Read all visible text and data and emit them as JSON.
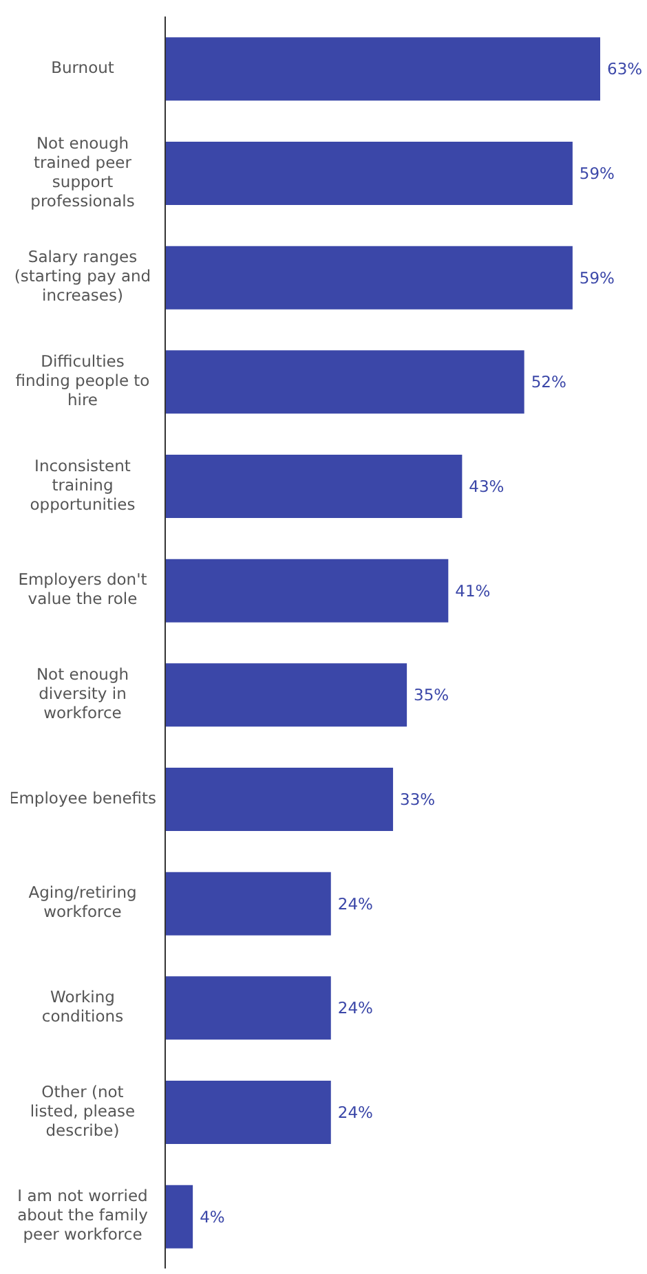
{
  "chart_data": {
    "type": "bar",
    "orientation": "horizontal",
    "categories": [
      "Burnout",
      "Not enough trained peer support professionals",
      "Salary ranges (starting pay and increases)",
      "Difficulties finding people to hire",
      "Inconsistent training opportunities",
      "Employers don't value the role",
      "Not enough diversity in workforce",
      "Employee benefits",
      "Aging/retiring workforce",
      "Working conditions",
      "Other (not listed, please describe)",
      "I am not worried about the family peer workforce"
    ],
    "values": [
      63,
      59,
      59,
      52,
      43,
      41,
      35,
      33,
      24,
      24,
      24,
      4
    ],
    "value_labels": [
      "63%",
      "59%",
      "59%",
      "52%",
      "43%",
      "41%",
      "35%",
      "33%",
      "24%",
      "24%",
      "24%",
      "4%"
    ],
    "color": "#3b47a8",
    "tick_labels": "y",
    "grid": false,
    "legend": false
  }
}
